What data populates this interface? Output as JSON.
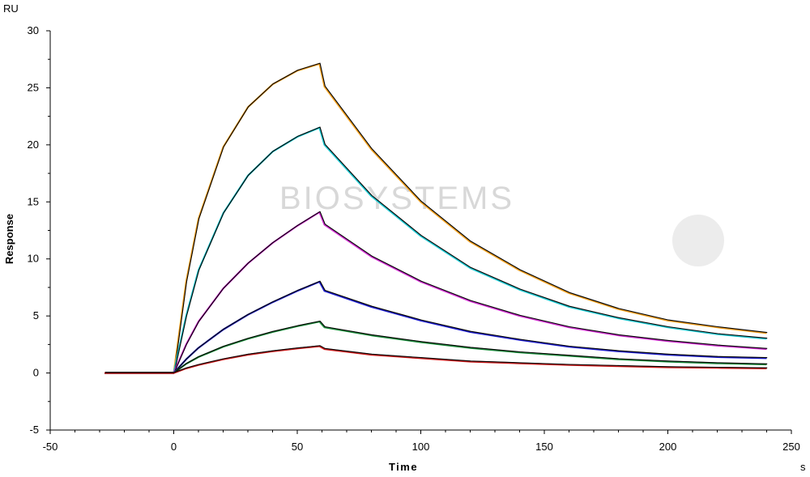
{
  "chart_data": {
    "type": "line",
    "title": "",
    "xlabel": "Time",
    "ylabel": "Response",
    "x_unit": "s",
    "y_unit": "RU",
    "xlim": [
      -50,
      250
    ],
    "ylim": [
      -5,
      30
    ],
    "x_ticks": [
      -50,
      0,
      50,
      100,
      150,
      200,
      250
    ],
    "y_ticks": [
      -5,
      0,
      5,
      10,
      15,
      20,
      25,
      30
    ],
    "grid": false,
    "legend": "none",
    "watermark": "BIOSYSTEMS",
    "x": [
      -28,
      0,
      5,
      10,
      20,
      30,
      40,
      50,
      59,
      61,
      80,
      100,
      120,
      140,
      160,
      180,
      200,
      220,
      240
    ],
    "series": [
      {
        "color": "#f2a020",
        "fit_color": "#000000",
        "values": [
          0,
          0,
          8.0,
          13.5,
          19.8,
          23.3,
          25.3,
          26.5,
          27.1,
          25.1,
          19.6,
          15.0,
          11.5,
          9.0,
          7.0,
          5.6,
          4.6,
          4.0,
          3.5
        ]
      },
      {
        "color": "#20c8d0",
        "fit_color": "#000000",
        "values": [
          0,
          0,
          5.0,
          9.0,
          14.0,
          17.3,
          19.4,
          20.7,
          21.5,
          20.0,
          15.5,
          12.0,
          9.2,
          7.3,
          5.8,
          4.8,
          4.0,
          3.4,
          3.0
        ]
      },
      {
        "color": "#d030d0",
        "fit_color": "#000000",
        "values": [
          0,
          0,
          2.5,
          4.5,
          7.4,
          9.6,
          11.4,
          12.9,
          14.1,
          13.0,
          10.2,
          8.0,
          6.3,
          5.0,
          4.0,
          3.3,
          2.8,
          2.4,
          2.1
        ]
      },
      {
        "color": "#2020d0",
        "fit_color": "#000000",
        "values": [
          0,
          0,
          1.2,
          2.2,
          3.8,
          5.1,
          6.2,
          7.2,
          8.0,
          7.2,
          5.8,
          4.6,
          3.6,
          2.9,
          2.3,
          1.9,
          1.6,
          1.4,
          1.3
        ]
      },
      {
        "color": "#209040",
        "fit_color": "#000000",
        "values": [
          0,
          0,
          0.8,
          1.4,
          2.3,
          3.0,
          3.6,
          4.1,
          4.5,
          4.0,
          3.3,
          2.7,
          2.2,
          1.8,
          1.5,
          1.2,
          1.0,
          0.85,
          0.75
        ]
      },
      {
        "color": "#d02020",
        "fit_color": "#000000",
        "values": [
          0,
          0,
          0.4,
          0.7,
          1.2,
          1.6,
          1.9,
          2.15,
          2.35,
          2.1,
          1.6,
          1.3,
          1.0,
          0.85,
          0.7,
          0.6,
          0.5,
          0.45,
          0.4
        ]
      }
    ]
  }
}
